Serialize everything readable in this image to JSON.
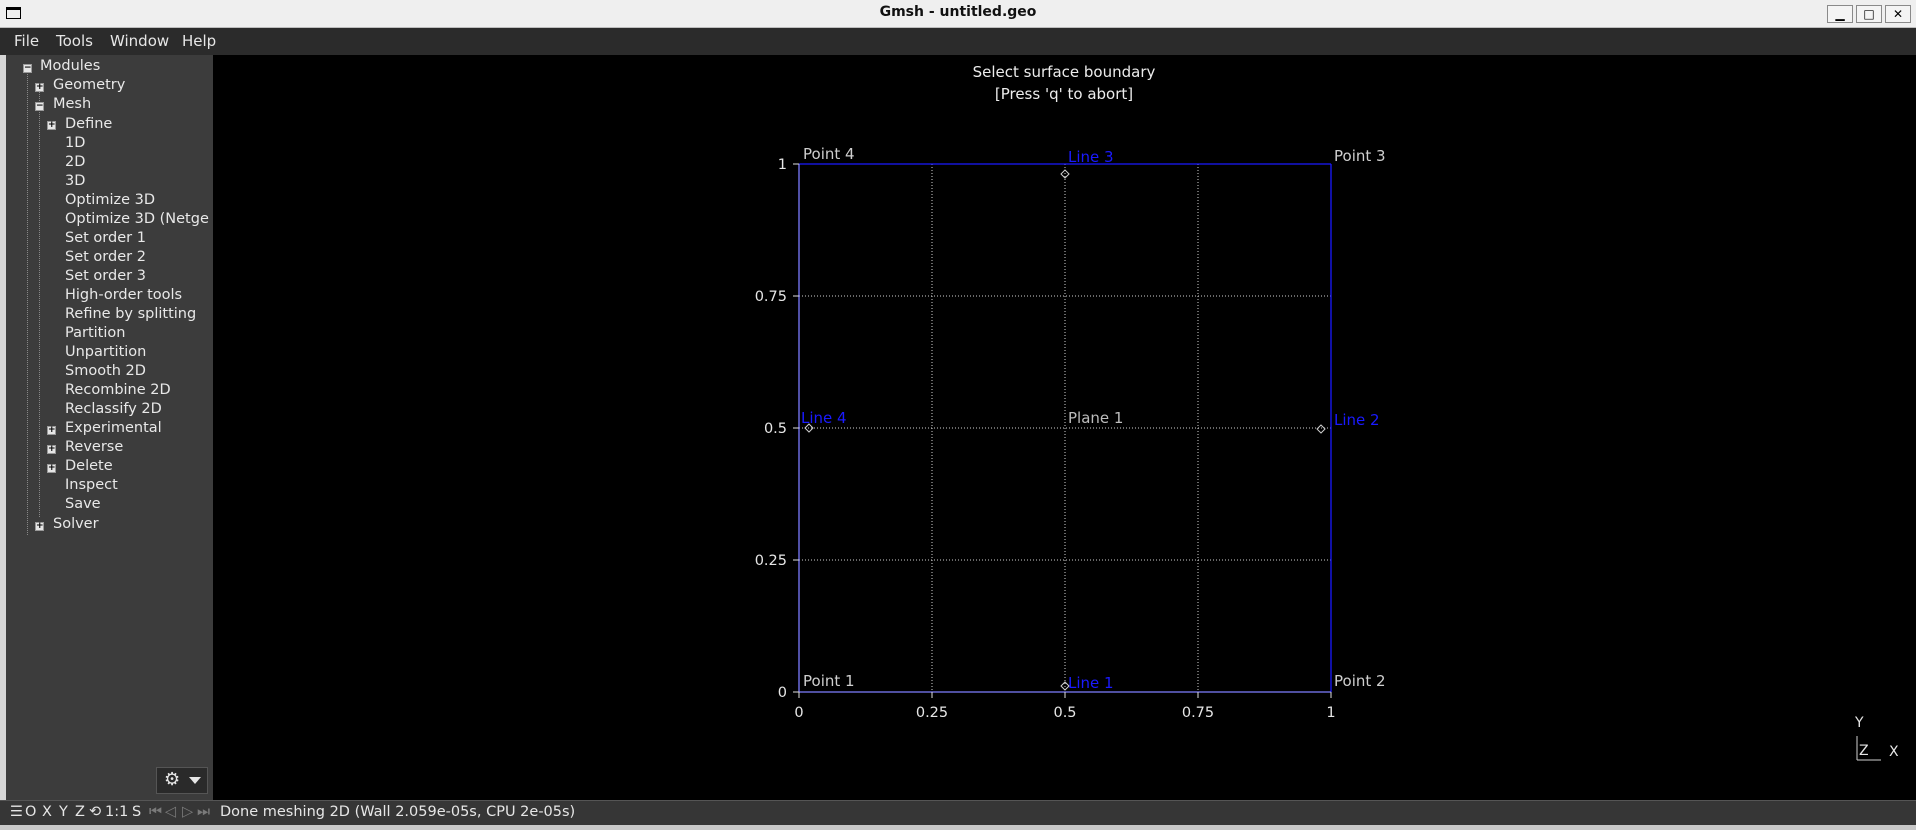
{
  "window": {
    "title": "Gmsh - untitled.geo"
  },
  "menu": {
    "file": "File",
    "tools": "Tools",
    "window": "Window",
    "help": "Help"
  },
  "tree": {
    "modules": "Modules",
    "geometry": "Geometry",
    "mesh": "Mesh",
    "define": "Define",
    "d1": "1D",
    "d2": "2D",
    "d3": "3D",
    "optimize3d": "Optimize 3D",
    "optimize3d_netgen": "Optimize 3D (Netge",
    "set_order_1": "Set order 1",
    "set_order_2": "Set order 2",
    "set_order_3": "Set order 3",
    "high_order_tools": "High-order tools",
    "refine_by_splitting": "Refine by splitting",
    "partition": "Partition",
    "unpartition": "Unpartition",
    "smooth_2d": "Smooth 2D",
    "recombine_2d": "Recombine 2D",
    "reclassify_2d": "Reclassify 2D",
    "experimental": "Experimental",
    "reverse": "Reverse",
    "delete": "Delete",
    "inspect": "Inspect",
    "save": "Save",
    "solver": "Solver"
  },
  "graphic": {
    "prompt_line1": "Select surface boundary",
    "prompt_line2": "[Press 'q' to abort]",
    "x_ticks": [
      "0",
      "0.25",
      "0.5",
      "0.75",
      "1"
    ],
    "y_ticks": [
      "1",
      "0.75",
      "0.5",
      "0.25",
      "0"
    ],
    "points": [
      "Point 1",
      "Point 2",
      "Point 3",
      "Point 4"
    ],
    "lines": [
      "Line 1",
      "Line 2",
      "Line 3",
      "Line 4"
    ],
    "plane": "Plane 1",
    "axes": {
      "y": "Y",
      "z": "Z",
      "x": "X"
    },
    "colors": {
      "lines": "#1a1aff",
      "grid": "#cfcfcf",
      "labels": "#cfcfcf"
    }
  },
  "status": {
    "o": "O",
    "x": "X",
    "y": "Y",
    "z": "Z",
    "scale": "1:1",
    "s": "S",
    "message": "Done meshing 2D (Wall 2.059e-05s, CPU 2e-05s)"
  }
}
